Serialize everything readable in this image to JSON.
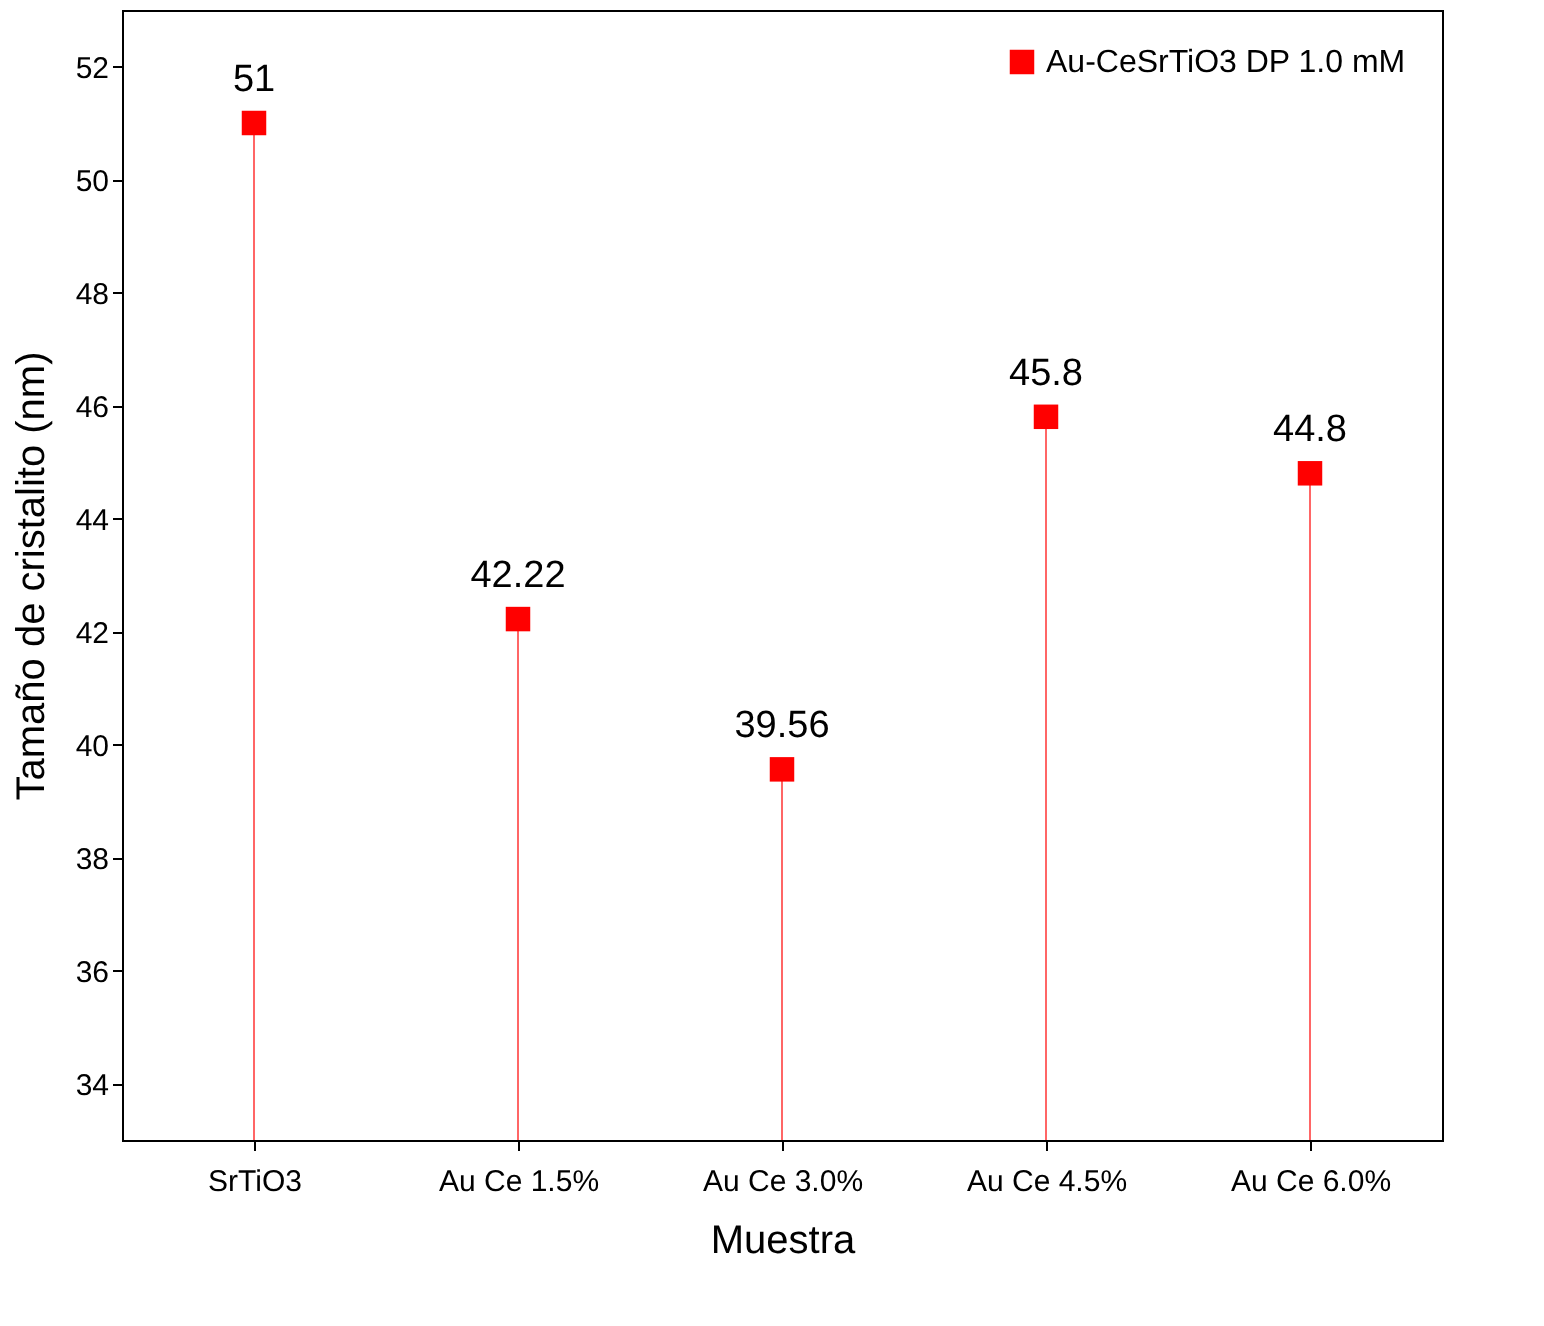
{
  "chart_data": {
    "type": "lollipop",
    "xlabel": "Muestra",
    "ylabel": "Tamaño de cristalito (nm)",
    "categories": [
      "SrTiO3",
      "Au Ce 1.5%",
      "Au Ce 3.0%",
      "Au Ce 4.5%",
      "Au Ce 6.0%"
    ],
    "series": [
      {
        "name": "Au-CeSrTiO3 DP 1.0 mM",
        "color": "#ff0000",
        "values": [
          51,
          42.22,
          39.56,
          45.8,
          44.8
        ]
      }
    ],
    "ylim": [
      33,
      53
    ],
    "yticks": [
      34,
      36,
      38,
      40,
      42,
      44,
      46,
      48,
      50,
      52
    ],
    "data_labels": true,
    "marker": "square",
    "legend": "top right",
    "grid": false
  }
}
